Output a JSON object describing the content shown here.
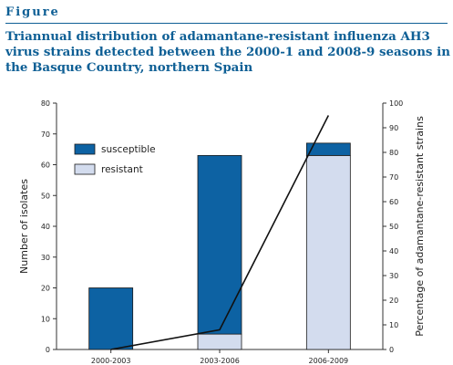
{
  "header": {
    "figure_label": "Figure",
    "title": "Triannual distribution of adamantane-resistant influenza AH3 virus strains detected between the 2000-1 and 2008-9 seasons in the Basque Country, northern Spain"
  },
  "colors": {
    "susceptible": "#0d62a3",
    "resistant": "#d3dcee",
    "line": "#111111",
    "title": "#0e5f95"
  },
  "chart_data": {
    "type": "bar",
    "stacked": true,
    "categories": [
      "2000-2003",
      "2003-2006",
      "2006-2009"
    ],
    "series": [
      {
        "name": "susceptible",
        "values": [
          20,
          58,
          4
        ]
      },
      {
        "name": "resistant",
        "values": [
          0,
          5,
          63
        ]
      }
    ],
    "ylabel": "Number of isolates",
    "ylim": [
      0,
      80
    ],
    "yticks": [
      0,
      10,
      20,
      30,
      40,
      50,
      60,
      70,
      80
    ],
    "y2label": "Percentage of adamantane-resistant strains",
    "y2lim": [
      0,
      100
    ],
    "y2ticks": [
      0,
      10,
      20,
      30,
      40,
      50,
      60,
      70,
      80,
      90,
      100
    ],
    "line_series": {
      "axis": "y2",
      "values": [
        0,
        8,
        95
      ]
    },
    "legend": {
      "position": "top-left",
      "entries": [
        "susceptible",
        "resistant"
      ]
    },
    "grid": false
  }
}
